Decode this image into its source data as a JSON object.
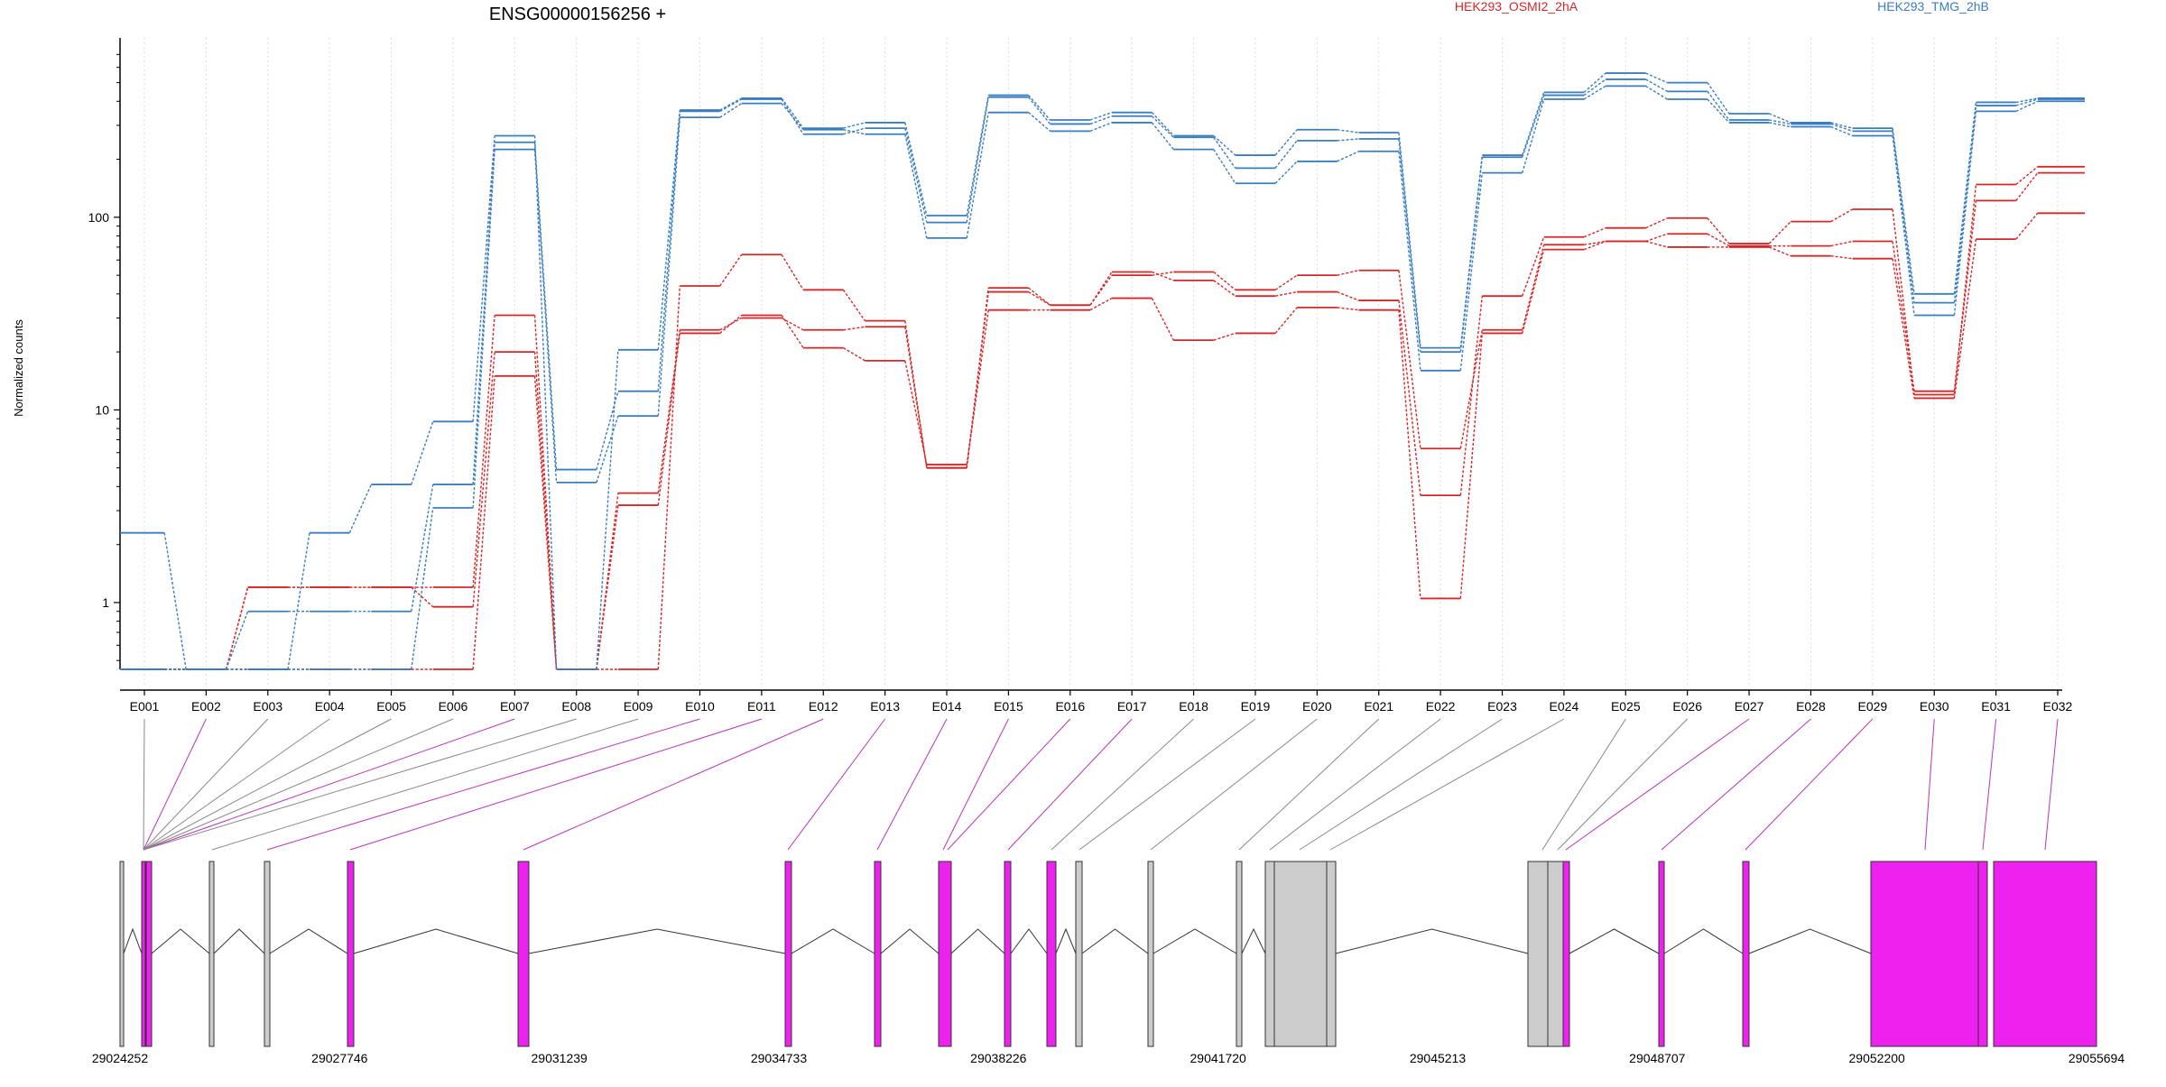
{
  "chart_data": {
    "type": "line",
    "title": "ENSG00000156256 +",
    "ylabel": "Normalized counts",
    "y_scale": "log",
    "ylim": [
      0.45,
      800
    ],
    "y_ticks": [
      1,
      10,
      100
    ],
    "y_tick_labels": [
      "1",
      "10",
      "100"
    ],
    "grid": "vertical dotted lines at each exon",
    "legend": [
      {
        "label": "HEK293_OSMI2_2hA",
        "color": "#d62728"
      },
      {
        "label": "HEK293_TMG_2hB",
        "color": "#3a7dc0"
      }
    ],
    "exons": [
      "E001",
      "E002",
      "E003",
      "E004",
      "E005",
      "E006",
      "E007",
      "E008",
      "E009",
      "E010",
      "E011",
      "E012",
      "E013",
      "E014",
      "E015",
      "E016",
      "E017",
      "E018",
      "E019",
      "E020",
      "E021",
      "E022",
      "E023",
      "E024",
      "E025",
      "E026",
      "E027",
      "E028",
      "E029",
      "E030",
      "E031",
      "E032"
    ],
    "series": [
      {
        "group": "HEK293_OSMI2_2hA",
        "color": "#d62728",
        "values": [
          0.45,
          0.45,
          0.45,
          0.45,
          0.45,
          0.45,
          15,
          0.45,
          3.2,
          25,
          31,
          21,
          18,
          5.2,
          33,
          33,
          38,
          23,
          25,
          34,
          33,
          1.05,
          25,
          68,
          75,
          70,
          70,
          63,
          61,
          11.5,
          77,
          105
        ]
      },
      {
        "group": "HEK293_OSMI2_2hA",
        "color": "#d62728",
        "values": [
          0.45,
          0.45,
          1.2,
          1.2,
          1.2,
          1.2,
          31,
          0.45,
          3.7,
          26,
          30,
          26,
          27,
          5.0,
          43,
          35,
          50,
          52,
          42,
          50,
          53,
          6.3,
          26,
          72,
          75,
          82,
          71,
          71,
          75,
          12.5,
          122,
          170
        ]
      },
      {
        "group": "HEK293_OSMI2_2hA",
        "color": "#d62728",
        "values": [
          0.45,
          0.45,
          1.2,
          1.2,
          1.2,
          0.95,
          20,
          0.45,
          0.45,
          44,
          64,
          42,
          29,
          5.0,
          41,
          35,
          52,
          47,
          39,
          41,
          37,
          3.6,
          39,
          79,
          88,
          99,
          73,
          95,
          110,
          12,
          148,
          183
        ]
      },
      {
        "group": "HEK293_TMG_2hB",
        "color": "#3a7dc0",
        "values": [
          2.3,
          0.45,
          0.45,
          0.45,
          0.45,
          3.1,
          225,
          4.2,
          9.3,
          330,
          390,
          285,
          270,
          78,
          350,
          280,
          310,
          225,
          150,
          195,
          220,
          16,
          170,
          410,
          480,
          410,
          310,
          295,
          265,
          31,
          355,
          400
        ]
      },
      {
        "group": "HEK293_TMG_2hB",
        "color": "#3a7dc0",
        "values": [
          0.45,
          0.45,
          0.9,
          0.9,
          0.9,
          4.1,
          245,
          4.9,
          12.5,
          355,
          410,
          270,
          290,
          94,
          420,
          305,
          335,
          260,
          180,
          250,
          255,
          20,
          205,
          430,
          520,
          450,
          320,
          305,
          280,
          36,
          380,
          410
        ]
      },
      {
        "group": "HEK293_TMG_2hB",
        "color": "#3a7dc0",
        "values": [
          0.45,
          0.45,
          0.45,
          2.3,
          4.1,
          8.7,
          265,
          0.45,
          20.5,
          360,
          415,
          290,
          310,
          102,
          430,
          320,
          350,
          265,
          210,
          285,
          275,
          21,
          210,
          445,
          560,
          500,
          345,
          310,
          290,
          40,
          395,
          415
        ]
      }
    ],
    "gene_model": {
      "start": "29024252",
      "end": "29055694",
      "ticks": [
        "29024252",
        "29027746",
        "29031239",
        "29034733",
        "29038226",
        "29041720",
        "29045213",
        "29048707",
        "29052200",
        "29055694"
      ],
      "exon_colors": {
        "used": "#ee22ee",
        "other": "#cccccc"
      }
    }
  }
}
